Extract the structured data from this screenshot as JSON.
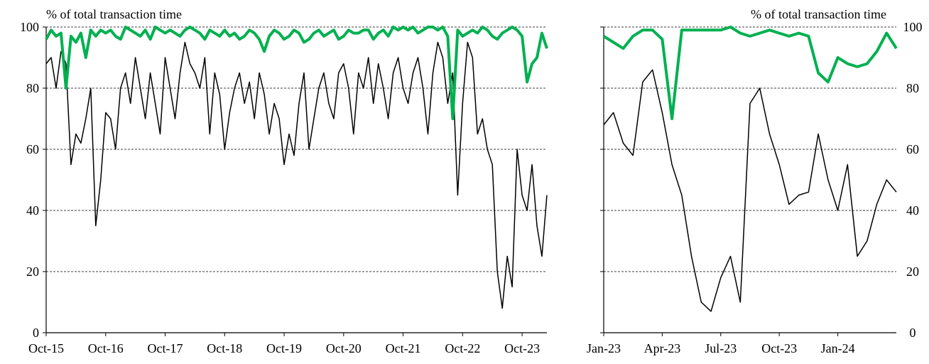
{
  "chart_data": [
    {
      "type": "line",
      "y_label": "% of total transaction time",
      "categories": [
        "Oct-15",
        null,
        null,
        null,
        null,
        null,
        null,
        null,
        null,
        null,
        null,
        null,
        "Oct-16",
        null,
        null,
        null,
        null,
        null,
        null,
        null,
        null,
        null,
        null,
        null,
        "Oct-17",
        null,
        null,
        null,
        null,
        null,
        null,
        null,
        null,
        null,
        null,
        null,
        "Oct-18",
        null,
        null,
        null,
        null,
        null,
        null,
        null,
        null,
        null,
        null,
        null,
        "Oct-19",
        null,
        null,
        null,
        null,
        null,
        null,
        null,
        null,
        null,
        null,
        null,
        "Oct-20",
        null,
        null,
        null,
        null,
        null,
        null,
        null,
        null,
        null,
        null,
        null,
        "Oct-21",
        null,
        null,
        null,
        null,
        null,
        null,
        null,
        null,
        null,
        null,
        null,
        "Oct-22",
        null,
        null,
        null,
        null,
        null,
        null,
        null,
        null,
        null,
        null,
        null,
        "Oct-23",
        null,
        null,
        null,
        null,
        null
      ],
      "series": [
        {
          "color": "#000000",
          "values": [
            88,
            90,
            80,
            92,
            88,
            55,
            65,
            62,
            70,
            80,
            35,
            50,
            72,
            70,
            60,
            80,
            85,
            75,
            90,
            80,
            70,
            85,
            75,
            65,
            90,
            80,
            70,
            85,
            95,
            88,
            85,
            80,
            90,
            65,
            85,
            78,
            60,
            72,
            80,
            85,
            75,
            82,
            70,
            85,
            78,
            65,
            75,
            70,
            55,
            65,
            58,
            75,
            85,
            60,
            70,
            80,
            85,
            75,
            70,
            85,
            88,
            80,
            65,
            85,
            80,
            90,
            75,
            88,
            80,
            70,
            85,
            90,
            80,
            75,
            85,
            90,
            80,
            65,
            85,
            95,
            90,
            75,
            85,
            45,
            75,
            95,
            90,
            65,
            70,
            60,
            55,
            20,
            8,
            25,
            15,
            60,
            45,
            40,
            55,
            35,
            25,
            45
          ]
        },
        {
          "color": "#00b050",
          "values": [
            96,
            99,
            97,
            98,
            80,
            97,
            95,
            98,
            90,
            99,
            97,
            99,
            98,
            99,
            97,
            96,
            100,
            99,
            98,
            97,
            99,
            96,
            100,
            99,
            98,
            99,
            98,
            97,
            99,
            100,
            99,
            98,
            96,
            99,
            98,
            97,
            99,
            97,
            98,
            96,
            97,
            99,
            98,
            96,
            92,
            97,
            99,
            98,
            96,
            97,
            99,
            98,
            95,
            96,
            98,
            99,
            97,
            98,
            99,
            96,
            97,
            99,
            98,
            98,
            99,
            99,
            96,
            98,
            99,
            97,
            100,
            99,
            100,
            99,
            100,
            98,
            99,
            100,
            100,
            99,
            100,
            97,
            70,
            99,
            97,
            98,
            99,
            98,
            100,
            99,
            97,
            96,
            98,
            99,
            100,
            99,
            97,
            82,
            88,
            90,
            98,
            93
          ]
        }
      ],
      "ylim": [
        0,
        100
      ],
      "yticks": [
        0,
        20,
        40,
        60,
        80,
        100
      ],
      "grid": true
    },
    {
      "type": "line",
      "y_label": "% of total transaction time",
      "categories": [
        "Jan-23",
        null,
        null,
        null,
        null,
        null,
        "Apr-23",
        null,
        null,
        null,
        null,
        null,
        "Jul-23",
        null,
        null,
        null,
        null,
        null,
        "Oct-23",
        null,
        null,
        null,
        null,
        null,
        "Jan-24",
        null,
        null,
        null,
        null,
        null,
        null
      ],
      "series": [
        {
          "color": "#000000",
          "values": [
            68,
            72,
            62,
            58,
            82,
            86,
            72,
            55,
            45,
            25,
            10,
            7,
            18,
            25,
            10,
            75,
            80,
            65,
            55,
            42,
            45,
            46,
            65,
            50,
            40,
            55,
            25,
            30,
            42,
            50,
            46
          ]
        },
        {
          "color": "#00b050",
          "values": [
            97,
            95,
            93,
            97,
            99,
            99,
            96,
            70,
            99,
            99,
            99,
            99,
            99,
            100,
            98,
            97,
            98,
            99,
            98,
            97,
            98,
            97,
            85,
            82,
            90,
            88,
            87,
            88,
            92,
            98,
            93
          ]
        }
      ],
      "ylim": [
        0,
        100
      ],
      "yticks": [
        0,
        20,
        40,
        60,
        80,
        100
      ],
      "grid": true
    }
  ]
}
